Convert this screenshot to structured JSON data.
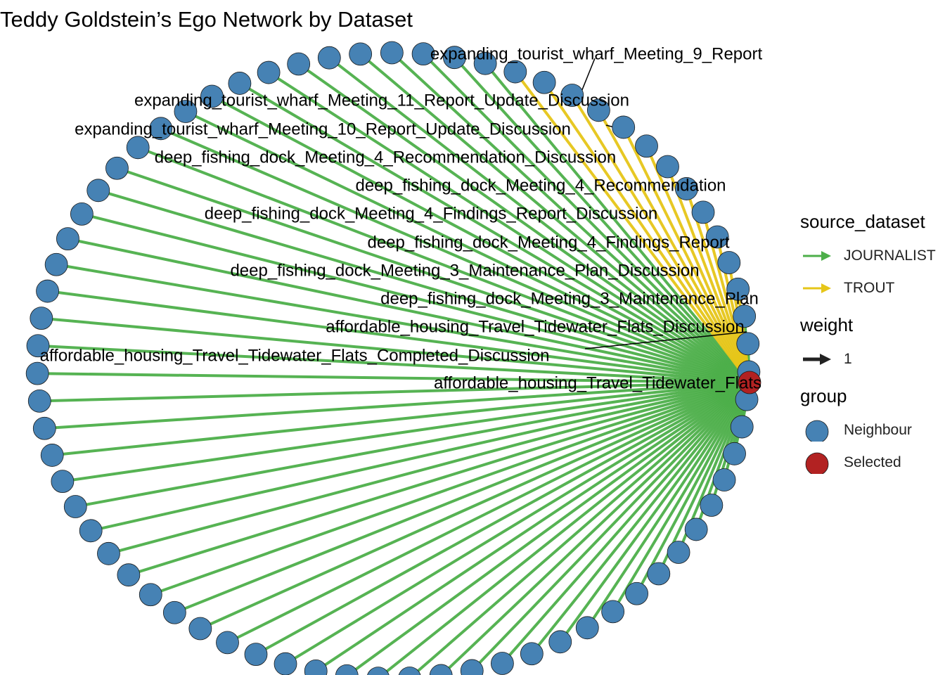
{
  "title": "Teddy Goldstein’s Ego Network by Dataset",
  "colors": {
    "neighbour_node": "#4682B4",
    "selected_node": "#B22222",
    "journalist_edge": "#4DAF4A",
    "trout_edge": "#E6C619",
    "weight_arrow": "#222222"
  },
  "network": {
    "ego": "affordable_housing_Travel_Tidewater_Flats",
    "neighbour_count": 71,
    "trout_neighbour_count": 12,
    "edge_weight": 1,
    "labels": [
      "expanding_tourist_wharf_Meeting_9_Report",
      "expanding_tourist_wharf_Meeting_11_Report_Update_Discussion",
      "expanding_tourist_wharf_Meeting_10_Report_Update_Discussion",
      "deep_fishing_dock_Meeting_4_Recommendation_Discussion",
      "deep_fishing_dock_Meeting_4_Recommendation",
      "deep_fishing_dock_Meeting_4_Findings_Report_Discussion",
      "deep_fishing_dock_Meeting_4_Findings_Report",
      "deep_fishing_dock_Meeting_3_Maintenance_Plan_Discussion",
      "deep_fishing_dock_Meeting_3_Maintenance_Plan",
      "affordable_housing_Travel_Tidewater_Flats_Discussion",
      "affordable_housing_Travel_Tidewater_Flats_Completed_Discussion",
      "affordable_housing_Travel_Tidewater_Flats"
    ]
  },
  "legend": {
    "source_dataset": {
      "title": "source_dataset",
      "items": [
        {
          "label": "JOURNALIST",
          "color": "#4DAF4A"
        },
        {
          "label": "TROUT",
          "color": "#E6C619"
        }
      ]
    },
    "weight": {
      "title": "weight",
      "items": [
        {
          "label": "1"
        }
      ]
    },
    "group": {
      "title": "group",
      "items": [
        {
          "label": "Neighbour",
          "color": "#4682B4"
        },
        {
          "label": "Selected",
          "color": "#B22222"
        }
      ]
    }
  }
}
